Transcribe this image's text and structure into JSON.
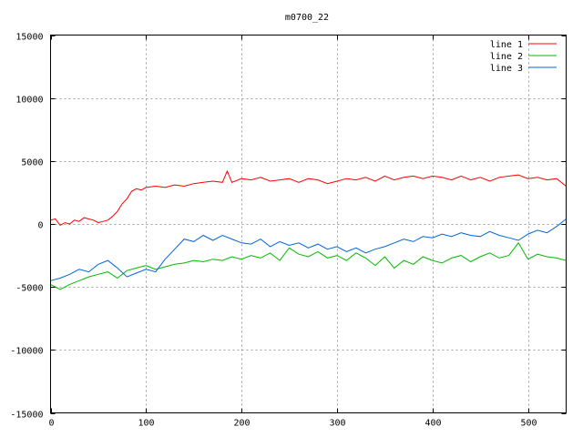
{
  "chart_data": {
    "type": "line",
    "title": "m0700_22",
    "xlabel": "",
    "ylabel": "",
    "xlim": [
      0,
      540
    ],
    "ylim": [
      -15000,
      15000
    ],
    "xticks": [
      0,
      100,
      200,
      300,
      400,
      500
    ],
    "yticks": [
      -15000,
      -10000,
      -5000,
      0,
      5000,
      10000,
      15000
    ],
    "grid": true,
    "legend": "top-right",
    "series": [
      {
        "name": "line 1",
        "color": "#ff0000",
        "x": [
          0,
          5,
          10,
          15,
          20,
          25,
          30,
          35,
          40,
          45,
          50,
          55,
          60,
          65,
          70,
          75,
          80,
          85,
          90,
          95,
          100,
          110,
          120,
          130,
          140,
          150,
          160,
          170,
          180,
          185,
          190,
          200,
          210,
          220,
          230,
          240,
          250,
          260,
          270,
          280,
          290,
          300,
          310,
          320,
          330,
          340,
          350,
          360,
          370,
          380,
          390,
          400,
          410,
          420,
          430,
          440,
          450,
          460,
          470,
          480,
          490,
          500,
          510,
          520,
          530,
          540
        ],
        "y": [
          300,
          400,
          -100,
          100,
          0,
          300,
          200,
          500,
          400,
          300,
          100,
          200,
          300,
          600,
          1000,
          1600,
          2000,
          2600,
          2800,
          2700,
          2900,
          3000,
          2900,
          3100,
          3000,
          3200,
          3300,
          3400,
          3300,
          4200,
          3300,
          3600,
          3500,
          3700,
          3400,
          3500,
          3600,
          3300,
          3600,
          3500,
          3200,
          3400,
          3600,
          3500,
          3700,
          3400,
          3800,
          3500,
          3700,
          3800,
          3600,
          3800,
          3700,
          3500,
          3800,
          3500,
          3700,
          3400,
          3700,
          3800,
          3900,
          3600,
          3700,
          3500,
          3600,
          3000
        ]
      },
      {
        "name": "line 2",
        "color": "#00bb00",
        "x": [
          0,
          10,
          20,
          30,
          40,
          50,
          60,
          70,
          80,
          90,
          100,
          110,
          120,
          130,
          140,
          150,
          160,
          170,
          180,
          190,
          200,
          210,
          220,
          230,
          240,
          250,
          260,
          270,
          280,
          290,
          300,
          310,
          320,
          330,
          340,
          350,
          360,
          370,
          380,
          390,
          400,
          410,
          420,
          430,
          440,
          450,
          460,
          470,
          480,
          490,
          500,
          510,
          520,
          530,
          540
        ],
        "y": [
          -4800,
          -5200,
          -4800,
          -4500,
          -4200,
          -4000,
          -3800,
          -4300,
          -3700,
          -3500,
          -3300,
          -3600,
          -3400,
          -3200,
          -3100,
          -2900,
          -3000,
          -2800,
          -2900,
          -2600,
          -2800,
          -2500,
          -2700,
          -2300,
          -2900,
          -1900,
          -2400,
          -2600,
          -2200,
          -2700,
          -2500,
          -2900,
          -2300,
          -2700,
          -3300,
          -2600,
          -3500,
          -2900,
          -3200,
          -2600,
          -2900,
          -3100,
          -2700,
          -2500,
          -3000,
          -2600,
          -2300,
          -2700,
          -2500,
          -1500,
          -2800,
          -2400,
          -2600,
          -2700,
          -2900
        ]
      },
      {
        "name": "line 3",
        "color": "#0066dd",
        "x": [
          0,
          10,
          20,
          30,
          40,
          50,
          60,
          70,
          80,
          90,
          100,
          110,
          120,
          130,
          140,
          150,
          160,
          170,
          180,
          190,
          200,
          210,
          220,
          230,
          240,
          250,
          260,
          270,
          280,
          290,
          300,
          310,
          320,
          330,
          340,
          350,
          360,
          370,
          380,
          390,
          400,
          410,
          420,
          430,
          440,
          450,
          460,
          470,
          480,
          490,
          500,
          510,
          520,
          530,
          540
        ],
        "y": [
          -4500,
          -4300,
          -4000,
          -3600,
          -3800,
          -3200,
          -2900,
          -3500,
          -4200,
          -3900,
          -3600,
          -3800,
          -2800,
          -2000,
          -1200,
          -1400,
          -900,
          -1300,
          -900,
          -1200,
          -1500,
          -1600,
          -1200,
          -1800,
          -1400,
          -1700,
          -1500,
          -1900,
          -1600,
          -2000,
          -1800,
          -2200,
          -1900,
          -2300,
          -2000,
          -1800,
          -1500,
          -1200,
          -1400,
          -1000,
          -1100,
          -800,
          -1000,
          -700,
          -900,
          -1000,
          -600,
          -900,
          -1100,
          -1300,
          -800,
          -500,
          -700,
          -200,
          400
        ]
      }
    ]
  }
}
